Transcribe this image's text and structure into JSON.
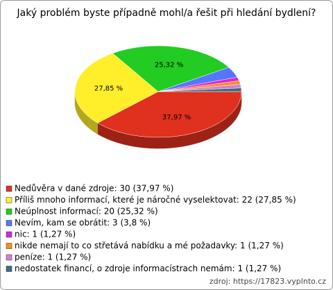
{
  "chart_data": {
    "type": "pie",
    "title": "Jaký problém byste případně mohl/a řešit při hledání bydlení?",
    "categories": [
      "Nedůvěra v dané zdroje: 30 (37,97 %)",
      "Příliš mnoho informací, které je náročné vyselektovat: 22 (27,85 %)",
      "Neúplnost informací: 20 (25,32 %)",
      "Nevím, kam se obrátit: 3 (3,8 %)",
      "nic: 1 (1,27 %)",
      "nikde nemají to co střetává nabídku a mé požadavky: 1 (1,27 %)",
      "peníze: 1 (1,27 %)",
      "nedostatek financí, o zdroje informacístrach nemám: 1 (1,27 %)"
    ],
    "values": [
      37.97,
      27.85,
      25.32,
      3.8,
      1.27,
      1.27,
      1.27,
      1.27
    ],
    "value_labels": [
      "37,97 %",
      "27,85 %",
      "25,32 %",
      null,
      null,
      null,
      null,
      null
    ],
    "colors": [
      "#e0301e",
      "#ffee2a",
      "#22cc22",
      "#5577ff",
      "#e020e0",
      "#ff8c1a",
      "#d080d0",
      "#3b6e80"
    ],
    "source": "zdroj: https://17823.vyplnto.cz"
  }
}
